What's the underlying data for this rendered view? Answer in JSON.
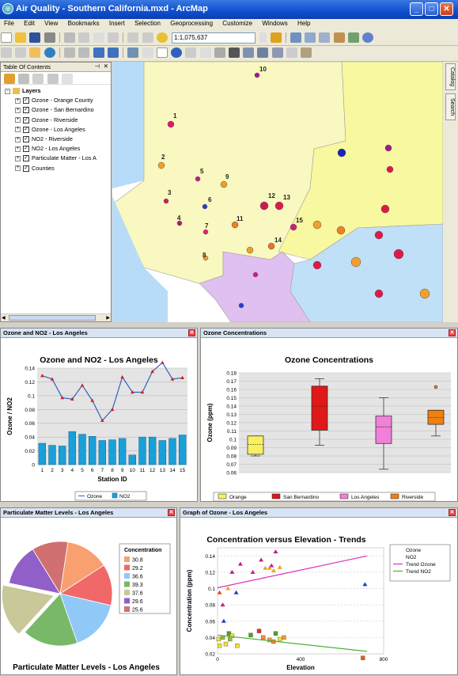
{
  "window": {
    "title": "Air Quality - Southern California.mxd - ArcMap"
  },
  "menu": [
    "File",
    "Edit",
    "View",
    "Bookmarks",
    "Insert",
    "Selection",
    "Geoprocessing",
    "Customize",
    "Windows",
    "Help"
  ],
  "toolbar": {
    "scale": "1:1,075,637"
  },
  "toc": {
    "title": "Table Of Contents",
    "root": "Layers",
    "layers": [
      "Ozone - Orange County",
      "Ozone - San Bernardino",
      "Ozone - Riverside",
      "Ozone - Los Angeles",
      "NO2 - Riverside",
      "NO2 - Los Angeles",
      "Particulate Matter - Los A",
      "Counties"
    ]
  },
  "sidebar": {
    "catalog": "Catalog",
    "search": "Search"
  },
  "map": {
    "station_labels": [
      "1",
      "2",
      "3",
      "4",
      "5",
      "6",
      "7",
      "8",
      "9",
      "10",
      "11",
      "12",
      "13",
      "14",
      "15"
    ]
  },
  "panels": {
    "p1": {
      "title": "Ozone and NO2 - Los Angeles"
    },
    "p2": {
      "title": "Ozone Concentrations"
    },
    "p3": {
      "title": "Particulate Matter Levels - Los Angeles"
    },
    "p4": {
      "title": "Graph of Ozone - Los Angeles"
    }
  },
  "chart_data": [
    {
      "type": "bar",
      "title": "Ozone and NO2 - Los Angeles",
      "xlabel": "Station ID",
      "ylabel": "Ozone / NO2",
      "categories": [
        "1",
        "2",
        "3",
        "4",
        "5",
        "6",
        "7",
        "8",
        "9",
        "10",
        "11",
        "12",
        "13",
        "14",
        "15"
      ],
      "ylim": [
        0,
        0.14
      ],
      "yticks": [
        "0",
        "0.02",
        "0.04",
        "0.06",
        "0.08",
        "0.1",
        "0.12",
        "0.14"
      ],
      "series": [
        {
          "name": "Ozone",
          "type": "line",
          "values": [
            0.129,
            0.124,
            0.097,
            0.095,
            0.115,
            0.093,
            0.064,
            0.08,
            0.127,
            0.105,
            0.105,
            0.135,
            0.148,
            0.124,
            0.126
          ]
        },
        {
          "name": "NO2",
          "type": "bar",
          "values": [
            0.031,
            0.028,
            0.027,
            0.048,
            0.044,
            0.041,
            0.035,
            0.036,
            0.038,
            0.014,
            0.04,
            0.04,
            0.035,
            0.038,
            0.043
          ]
        }
      ],
      "colors": {
        "Ozone": "#3060c0",
        "NO2": "#1aa0d8"
      },
      "grid": true,
      "legend": "bottom"
    },
    {
      "type": "box",
      "title": "Ozone Concentrations",
      "ylabel": "Ozone (ppm)",
      "ylim": [
        0.06,
        0.18
      ],
      "yticks": [
        "0.06",
        "0.07",
        "0.08",
        "0.09",
        "0.1",
        "0.11",
        "0.12",
        "0.13",
        "0.14",
        "0.15",
        "0.16",
        "0.17",
        "0.18"
      ],
      "series": [
        {
          "name": "Orange",
          "color": "#f8f060",
          "min": 0.08,
          "q1": 0.082,
          "median": 0.094,
          "q3": 0.104,
          "max": 0.104,
          "outliers": []
        },
        {
          "name": "San Bernardino",
          "color": "#e01818",
          "min": 0.093,
          "q1": 0.111,
          "median": 0.14,
          "q3": 0.164,
          "max": 0.173,
          "outliers": []
        },
        {
          "name": "Los Angeles",
          "color": "#f080d8",
          "min": 0.064,
          "q1": 0.095,
          "median": 0.115,
          "q3": 0.128,
          "max": 0.15,
          "outliers": []
        },
        {
          "name": "Riverside",
          "color": "#f08010",
          "min": 0.104,
          "q1": 0.118,
          "median": 0.126,
          "q3": 0.135,
          "max": 0.135,
          "outliers": [
            0.163
          ]
        }
      ],
      "grid": true,
      "legend": "bottom"
    },
    {
      "type": "pie",
      "title": "Particulate Matter Levels - Los Angeles",
      "legend_title": "Concentration",
      "labels": [
        "30.8",
        "29.2",
        "36.6",
        "39.3",
        "37.6",
        "29.6",
        "25.6"
      ],
      "values": [
        30.8,
        29.2,
        36.6,
        39.3,
        37.6,
        29.6,
        25.6
      ],
      "colors": [
        "#f8a070",
        "#f06868",
        "#90c8f8",
        "#78b868",
        "#c8c898",
        "#9060c8",
        "#d07070"
      ],
      "exploded": "37.6",
      "legend": "right"
    },
    {
      "type": "scatter",
      "title": "Concentration versus Elevation - Trends",
      "xlabel": "Elevation",
      "ylabel": "Concentration (ppm)",
      "xlim": [
        0,
        800
      ],
      "ylim": [
        0.02,
        0.15
      ],
      "xticks": [
        "0",
        "400",
        "800"
      ],
      "yticks": [
        "0.02",
        "0.04",
        "0.06",
        "0.08",
        "0.1",
        "0.12",
        "0.14"
      ],
      "series": [
        {
          "name": "Ozone",
          "marker": "triangle",
          "points": [
            [
              10,
              0.095
            ],
            [
              25,
              0.08
            ],
            [
              30,
              0.06
            ],
            [
              50,
              0.1
            ],
            [
              70,
              0.12
            ],
            [
              90,
              0.095
            ],
            [
              110,
              0.13
            ],
            [
              170,
              0.12
            ],
            [
              210,
              0.135
            ],
            [
              230,
              0.125
            ],
            [
              250,
              0.125
            ],
            [
              260,
              0.128
            ],
            [
              270,
              0.122
            ],
            [
              280,
              0.145
            ],
            [
              300,
              0.126
            ],
            [
              710,
              0.105
            ]
          ]
        },
        {
          "name": "NO2",
          "marker": "square",
          "points": [
            [
              5,
              0.038
            ],
            [
              10,
              0.03
            ],
            [
              25,
              0.04
            ],
            [
              40,
              0.032
            ],
            [
              55,
              0.045
            ],
            [
              60,
              0.038
            ],
            [
              70,
              0.042
            ],
            [
              95,
              0.03
            ],
            [
              160,
              0.043
            ],
            [
              200,
              0.048
            ],
            [
              220,
              0.04
            ],
            [
              250,
              0.037
            ],
            [
              270,
              0.035
            ],
            [
              280,
              0.045
            ],
            [
              300,
              0.038
            ],
            [
              320,
              0.04
            ],
            [
              700,
              0.015
            ]
          ]
        },
        {
          "name": "Trend Ozone",
          "type": "line",
          "points": [
            [
              0,
              0.101
            ],
            [
              720,
              0.14
            ]
          ]
        },
        {
          "name": "Trend NO2",
          "type": "line",
          "points": [
            [
              0,
              0.043
            ],
            [
              720,
              0.023
            ]
          ]
        }
      ],
      "colors": {
        "Ozone": "#c030a0",
        "NO2": "#e8c030",
        "Trend Ozone": "#e030c0",
        "Trend NO2": "#50b030"
      },
      "grid": true,
      "legend": "top-right"
    }
  ]
}
